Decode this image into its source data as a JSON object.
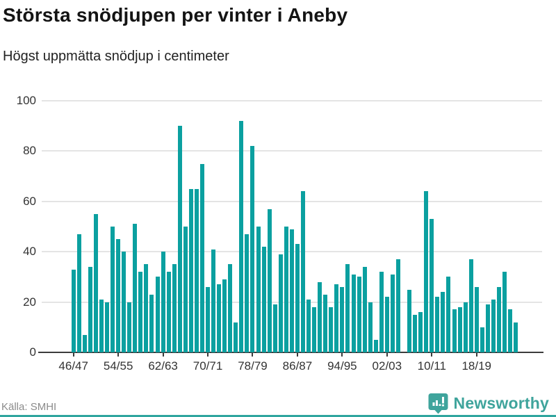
{
  "header": {
    "title": "Största snödjupen per vinter i Aneby",
    "subtitle": "Högst uppmätta snödjup i centimeter"
  },
  "footer": {
    "source": "Källa: SMHI",
    "brand": "Newsworthy"
  },
  "colors": {
    "bar": "#0ba0a0",
    "brand_teal": "#3fa49c",
    "axis": "#3b3b3b",
    "grid": "#e4e4e4",
    "text_dark": "#141414",
    "text_gray": "#8b8b8b",
    "bottom_band": "#2fa59e"
  },
  "chart_data": {
    "type": "bar",
    "title": "Största snödjupen per vinter i Aneby",
    "subtitle": "Högst uppmätta snödjup i centimeter",
    "unit": "centimeter",
    "ylim": [
      0,
      100
    ],
    "y_ticks": [
      0,
      20,
      40,
      60,
      80,
      100
    ],
    "grid": "horizontal",
    "legend": null,
    "categories": [
      "46/47",
      "47/48",
      "48/49",
      "49/50",
      "50/51",
      "51/52",
      "52/53",
      "53/54",
      "54/55",
      "55/56",
      "56/57",
      "57/58",
      "58/59",
      "59/60",
      "60/61",
      "61/62",
      "62/63",
      "63/64",
      "64/65",
      "65/66",
      "66/67",
      "67/68",
      "68/69",
      "69/70",
      "70/71",
      "71/72",
      "72/73",
      "73/74",
      "74/75",
      "75/76",
      "76/77",
      "77/78",
      "78/79",
      "79/80",
      "80/81",
      "81/82",
      "82/83",
      "83/84",
      "84/85",
      "85/86",
      "86/87",
      "87/88",
      "88/89",
      "89/90",
      "90/91",
      "91/92",
      "92/93",
      "93/94",
      "94/95",
      "95/96",
      "96/97",
      "97/98",
      "98/99",
      "99/00",
      "00/01",
      "01/02",
      "02/03",
      "03/04",
      "04/05",
      "05/06",
      "06/07",
      "07/08",
      "08/09",
      "09/10",
      "10/11",
      "11/12",
      "12/13",
      "13/14",
      "14/15",
      "15/16",
      "16/17",
      "17/18",
      "18/19",
      "19/20",
      "20/21",
      "21/22",
      "22/23",
      "23/24",
      "24/25",
      "25/26"
    ],
    "values": [
      33,
      47,
      7,
      34,
      55,
      21,
      20,
      50,
      45,
      40,
      20,
      51,
      32,
      35,
      23,
      30,
      40,
      32,
      35,
      90,
      50,
      65,
      65,
      75,
      26,
      41,
      27,
      29,
      35,
      12,
      92,
      47,
      82,
      50,
      42,
      57,
      19,
      39,
      50,
      49,
      43,
      64,
      21,
      18,
      28,
      23,
      18,
      27,
      26,
      35,
      31,
      30,
      34,
      20,
      5,
      32,
      22,
      31,
      37,
      null,
      25,
      15,
      16,
      64,
      53,
      22,
      24,
      30,
      17,
      18,
      20,
      37,
      26,
      10,
      19,
      21,
      26,
      32,
      17,
      12
    ],
    "x_tick_labels": [
      "46/47",
      "54/55",
      "62/63",
      "70/71",
      "78/79",
      "86/87",
      "94/95",
      "02/03",
      "10/11",
      "18/19"
    ],
    "x_tick_indices": [
      0,
      8,
      16,
      24,
      32,
      40,
      48,
      56,
      64,
      72
    ]
  }
}
